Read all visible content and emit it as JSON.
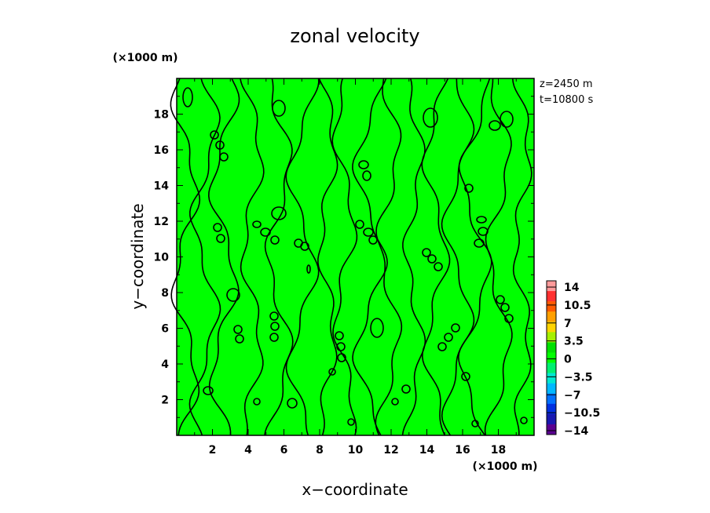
{
  "chart_data": {
    "type": "heatmap",
    "title": "zonal velocity",
    "xlabel": "x−coordinate",
    "ylabel": "y−coordinate",
    "x_unit": "(×1000 m)",
    "y_unit": "(×1000 m)",
    "annotations": [
      "z=2450 m",
      "t=10800 s"
    ],
    "xlim": [
      0,
      20
    ],
    "ylim": [
      0,
      20
    ],
    "x_ticks": [
      2,
      4,
      6,
      8,
      10,
      12,
      14,
      16,
      18
    ],
    "y_ticks": [
      2,
      4,
      6,
      8,
      10,
      12,
      14,
      16,
      18
    ],
    "x_tick_labels": [
      "2",
      "4",
      "6",
      "8",
      "10",
      "12",
      "14",
      "16",
      "18"
    ],
    "y_tick_labels": [
      "2",
      "4",
      "6",
      "8",
      "10",
      "12",
      "14",
      "16",
      "18"
    ],
    "field_fill_color": "#00ff00",
    "contour_color": "#000000",
    "colorbar": {
      "levels": [
        -14,
        -10.5,
        -7,
        -3.5,
        0,
        3.5,
        7,
        10.5,
        14
      ],
      "labels": [
        "14",
        "10.5",
        "7",
        "3.5",
        "0",
        "−3.5",
        "−7",
        "−10.5",
        "−14"
      ],
      "colors": [
        "#ff9a9a",
        "#ff3030",
        "#ff5a00",
        "#ffa000",
        "#ffd400",
        "#a6f000",
        "#00e000",
        "#00ff00",
        "#00f070",
        "#00e8d0",
        "#00b8ff",
        "#0070ff",
        "#0030e0",
        "#1818b0",
        "#5a0090"
      ]
    }
  }
}
